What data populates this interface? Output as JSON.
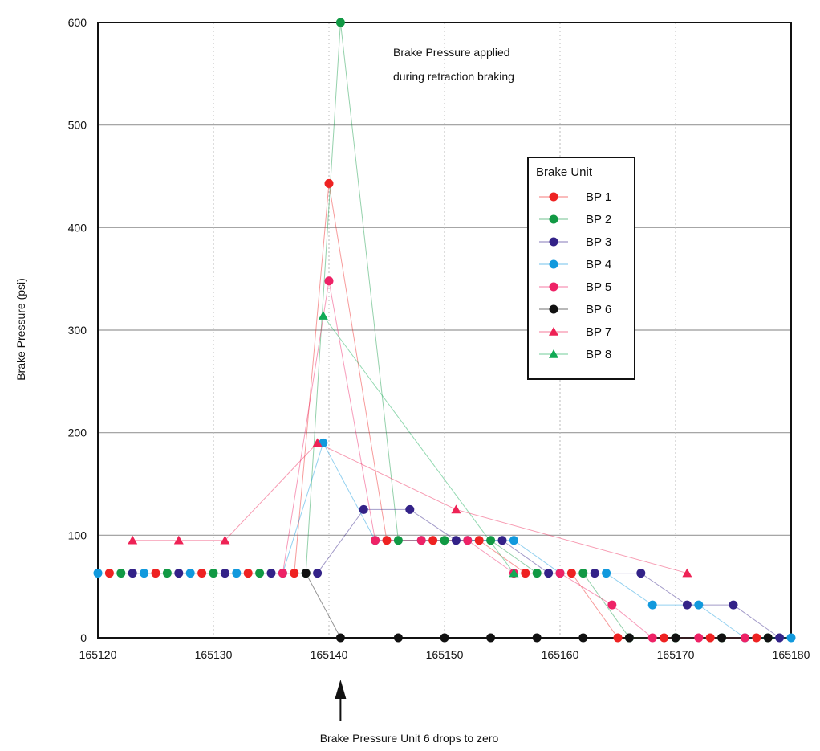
{
  "chart_data": {
    "type": "line",
    "title": "",
    "xlabel": "",
    "ylabel": "Brake Pressure (psi)",
    "xlim": [
      165120,
      165180
    ],
    "ylim": [
      0,
      600
    ],
    "xticks": [
      165120,
      165130,
      165140,
      165150,
      165160,
      165170,
      165180
    ],
    "yticks": [
      0,
      100,
      200,
      300,
      400,
      500,
      600
    ],
    "grid": true,
    "legend": {
      "title": "Brake Unit",
      "position": "right"
    },
    "annotations": {
      "top": [
        "Brake Pressure applied",
        "during retraction braking"
      ],
      "bottom": "Brake Pressure Unit 6 drops to zero",
      "arrow_x": 165141
    },
    "series": [
      {
        "name": "BP 1",
        "color": "#ee2222",
        "marker": "circle",
        "x": [
          165121,
          165125,
          165129,
          165133,
          165137,
          165140,
          165145,
          165149,
          165153,
          165157,
          165161,
          165165,
          165169,
          165173,
          165177
        ],
        "y": [
          63,
          63,
          63,
          63,
          63,
          443,
          95,
          95,
          95,
          63,
          63,
          0,
          0,
          0,
          0
        ]
      },
      {
        "name": "BP 2",
        "color": "#119944",
        "marker": "circle",
        "x": [
          165122,
          165126,
          165130,
          165134,
          165138,
          165141,
          165146,
          165150,
          165154,
          165158,
          165162,
          165166,
          165170,
          165174,
          165178
        ],
        "y": [
          63,
          63,
          63,
          63,
          63,
          600,
          95,
          95,
          95,
          63,
          63,
          0,
          0,
          0,
          0
        ]
      },
      {
        "name": "BP 3",
        "color": "#332288",
        "marker": "circle",
        "x": [
          165123,
          165127,
          165131,
          165135,
          165139,
          165143,
          165147,
          165151,
          165155,
          165159,
          165163,
          165167,
          165171,
          165175,
          165179
        ],
        "y": [
          63,
          63,
          63,
          63,
          63,
          125,
          125,
          95,
          95,
          63,
          63,
          63,
          32,
          32,
          0
        ]
      },
      {
        "name": "BP 4",
        "color": "#1199dd",
        "marker": "circle",
        "x": [
          165120,
          165124,
          165128,
          165132,
          165136,
          165139.5,
          165144,
          165148,
          165152,
          165156,
          165160,
          165164,
          165168,
          165172,
          165176,
          165180
        ],
        "y": [
          63,
          63,
          63,
          63,
          63,
          190,
          95,
          95,
          95,
          95,
          63,
          63,
          32,
          32,
          0,
          0
        ]
      },
      {
        "name": "BP 5",
        "color": "#ee2266",
        "marker": "circle",
        "x": [
          165136,
          165140,
          165144,
          165148,
          165152,
          165156,
          165160,
          165164.5,
          165168,
          165172,
          165176
        ],
        "y": [
          63,
          348,
          95,
          95,
          95,
          63,
          63,
          32,
          0,
          0,
          0
        ]
      },
      {
        "name": "BP 6",
        "color": "#111111",
        "marker": "circle",
        "x": [
          165138,
          165141,
          165146,
          165150,
          165154,
          165158,
          165162,
          165166,
          165170,
          165174,
          165178
        ],
        "y": [
          63,
          0,
          0,
          0,
          0,
          0,
          0,
          0,
          0,
          0,
          0
        ]
      },
      {
        "name": "BP 7",
        "color": "#ee2255",
        "marker": "triangle",
        "x": [
          165123,
          165127,
          165131,
          165139,
          165151,
          165171
        ],
        "y": [
          95,
          95,
          95,
          190,
          125,
          63
        ]
      },
      {
        "name": "BP 8",
        "color": "#11aa55",
        "marker": "triangle",
        "x": [
          165139.5,
          165156
        ],
        "y": [
          314,
          63
        ]
      }
    ]
  }
}
